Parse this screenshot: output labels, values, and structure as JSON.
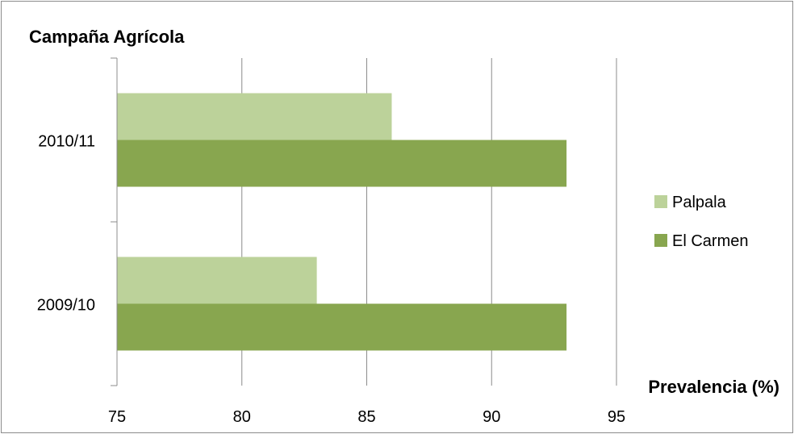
{
  "chart_data": {
    "type": "bar",
    "orientation": "horizontal",
    "title": "Campaña Agrícola",
    "xlabel": "Prevalencia (%)",
    "ylabel": "",
    "xlim": [
      75,
      95
    ],
    "x_ticks": [
      75,
      80,
      85,
      90,
      95
    ],
    "x_tick_labels": [
      "75",
      "80",
      "85",
      "90",
      "95"
    ],
    "categories": [
      "2010/11",
      "2009/10"
    ],
    "series": [
      {
        "name": "Palpala",
        "color": "#bcd29a",
        "values": [
          86,
          83
        ]
      },
      {
        "name": "El Carmen",
        "color": "#88a64f",
        "values": [
          93,
          93
        ]
      }
    ],
    "grid": "vertical",
    "legend_position": "right"
  }
}
